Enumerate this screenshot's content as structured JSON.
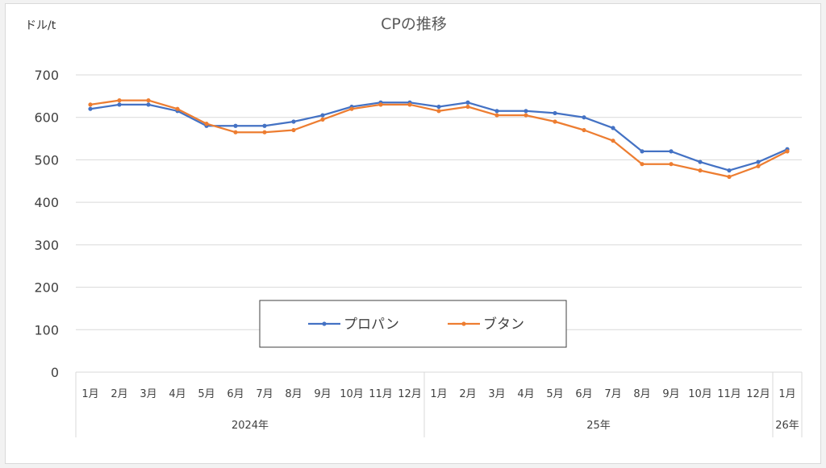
{
  "chart_data": {
    "type": "line",
    "title": "CPの推移",
    "ylabel": "ドル/t",
    "ylim": [
      0,
      700
    ],
    "yticks": [
      0,
      100,
      200,
      300,
      400,
      500,
      600,
      700
    ],
    "categories": [
      "1月",
      "2月",
      "3月",
      "4月",
      "5月",
      "6月",
      "7月",
      "8月",
      "9月",
      "10月",
      "11月",
      "12月",
      "1月",
      "2月",
      "3月",
      "4月",
      "5月",
      "6月",
      "7月",
      "8月",
      "9月",
      "10月",
      "11月",
      "12月",
      "1月"
    ],
    "year_groups": [
      {
        "label": "2024年",
        "span": 12
      },
      {
        "label": "25年",
        "span": 12
      },
      {
        "label": "26年",
        "span": 1
      }
    ],
    "series": [
      {
        "name": "プロパン",
        "color": "#4472c4",
        "values": [
          620,
          630,
          630,
          615,
          580,
          580,
          580,
          590,
          605,
          625,
          635,
          635,
          625,
          635,
          615,
          615,
          610,
          600,
          575,
          520,
          520,
          495,
          475,
          495,
          525
        ]
      },
      {
        "name": "ブタン",
        "color": "#ed7d31",
        "values": [
          630,
          640,
          640,
          620,
          585,
          565,
          565,
          570,
          595,
          620,
          630,
          630,
          615,
          625,
          605,
          605,
          590,
          570,
          545,
          490,
          490,
          475,
          460,
          485,
          520
        ]
      }
    ],
    "legend_position": "bottom-center inside plot",
    "grid": true
  }
}
